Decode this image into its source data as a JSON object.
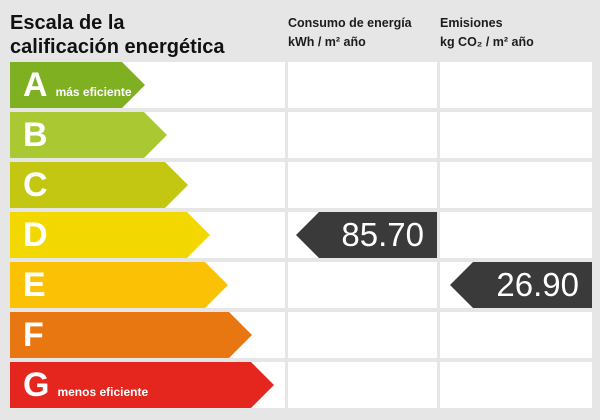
{
  "title": {
    "line1": "Escala de la",
    "line2": "calificación energética"
  },
  "columns": {
    "consumo": {
      "label": "Consumo de energía",
      "unit": "kWh / m² año"
    },
    "emisiones": {
      "label": "Emisiones",
      "unit": "kg CO₂ / m² año"
    }
  },
  "scale": {
    "rows": [
      {
        "letter": "A",
        "note": "más eficiente",
        "color": "#7eb021"
      },
      {
        "letter": "B",
        "color": "#a9c831"
      },
      {
        "letter": "C",
        "color": "#c4c712"
      },
      {
        "letter": "D",
        "color": "#f3d800"
      },
      {
        "letter": "E",
        "color": "#fbc105"
      },
      {
        "letter": "F",
        "color": "#e87711"
      },
      {
        "letter": "G",
        "note": "menos eficiente",
        "color": "#e4261f"
      }
    ]
  },
  "values": {
    "consumo": {
      "display": "85.70",
      "rating": "D",
      "arrow_color": "#3a3a3a"
    },
    "emisiones": {
      "display": "26.90",
      "rating": "E",
      "arrow_color": "#3a3a3a"
    }
  },
  "chart_data": {
    "type": "bar",
    "title": "Escala de la calificación energética",
    "categories": [
      "A",
      "B",
      "C",
      "D",
      "E",
      "F",
      "G"
    ],
    "category_notes": {
      "A": "más eficiente",
      "G": "menos eficiente"
    },
    "bar_colors": [
      "#7eb021",
      "#a9c831",
      "#c4c712",
      "#f3d800",
      "#fbc105",
      "#e87711",
      "#e4261f"
    ],
    "series": [
      {
        "name": "Consumo de energía",
        "unit": "kWh / m² año",
        "rating": "D",
        "value": 85.7
      },
      {
        "name": "Emisiones",
        "unit": "kg CO₂ / m² año",
        "rating": "E",
        "value": 26.9
      }
    ],
    "legend_position": "top",
    "grid": false
  }
}
